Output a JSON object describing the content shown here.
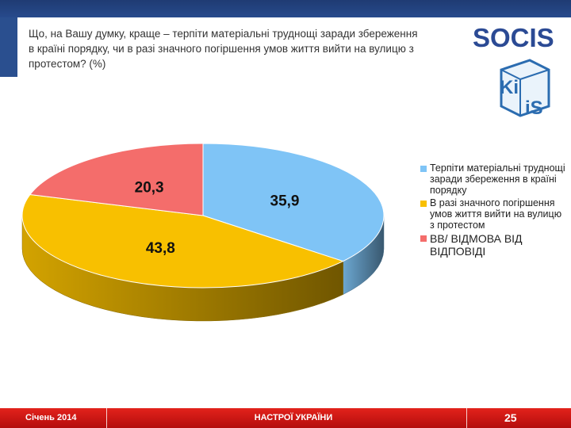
{
  "header": {
    "title": "Що, на Вашу думку, краще – терпіти матеріальні труднощі заради збереження в країні порядку, чи в разі значного погіршення умов життя вийти на вулицю з протестом? (%)"
  },
  "logos": {
    "socis": "SOCIS",
    "kiis_line1": "Ki",
    "kiis_line2": "iS"
  },
  "chart_data": {
    "type": "pie",
    "title": "",
    "series": [
      {
        "label": "Терпіти матеріальні труднощі заради збереження в країні порядку",
        "value": 35.9,
        "display": "35,9",
        "color": "#7fc4f6"
      },
      {
        "label": "В разі значного погіршення умов життя вийти на вулицю з протестом",
        "value": 43.8,
        "display": "43,8",
        "color": "#f8c000"
      },
      {
        "label": "ВВ/ ВІДМОВА ВІД ВІДПОВІДІ",
        "value": 20.3,
        "display": "20,3",
        "color": "#f46d6b"
      }
    ],
    "legend_position": "right"
  },
  "footer": {
    "date": "Січень 2014",
    "center": "НАСТРОЇ УКРАЇНИ",
    "page": "25"
  }
}
